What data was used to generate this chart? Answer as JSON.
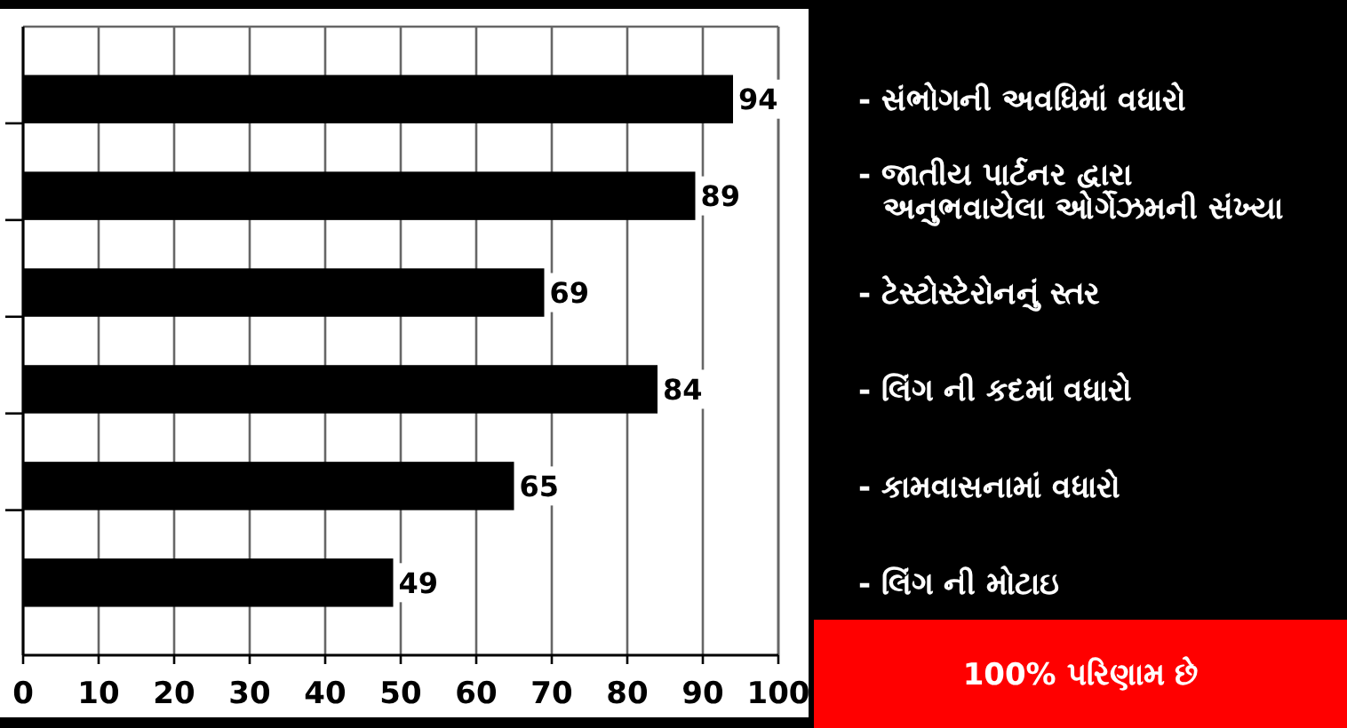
{
  "chart_data": {
    "type": "bar",
    "orientation": "horizontal",
    "categories": [
      "- સંભોગની અવધિમાં વધારો",
      "- જાતીય પાર્ટનર દ્વારા અનુભવાયેલા ઓર્ગેઝમની સંખ્યા",
      "- ટેસ્ટોસ્ટેરોનનું સ્તર",
      "- લિંગ ની કદમાં વધારો",
      "- કામવાસનામાં વધારો",
      "- લિંગ ની મોટાઇ"
    ],
    "values": [
      94,
      89,
      69,
      84,
      65,
      49
    ],
    "color": "#000000",
    "xlim": [
      0,
      100
    ],
    "xticks": [
      0,
      10,
      20,
      30,
      40,
      50,
      60,
      70,
      80,
      90,
      100
    ],
    "grid": "x",
    "data_labels": true,
    "annotations": [
      "100% પરિણામ છે"
    ]
  }
}
